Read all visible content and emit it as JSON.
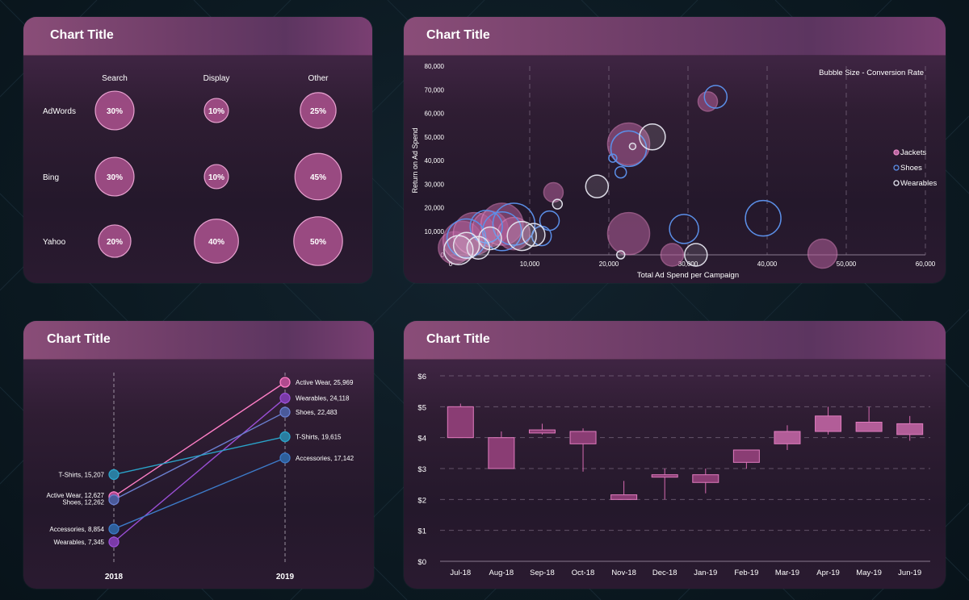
{
  "colors": {
    "panel_header": "#7a4570",
    "bubble_fill": "#a04d86",
    "bubble_stroke": "#f2a9d8",
    "jackets": "#c76aa6",
    "shoes": "#5b8fe8",
    "wearables": "#e6e6f0",
    "candle": "#b25d98",
    "active_wear": "#ff7fc7",
    "wearables_line": "#9b4fd6",
    "shoes_line": "#6a7fd0",
    "tshirts_line": "#2aa3c9",
    "accessories_line": "#3d7bc9"
  },
  "panels": {
    "matrix": {
      "title": "Chart Title"
    },
    "bubble": {
      "title": "Chart Title"
    },
    "slope": {
      "title": "Chart Title"
    },
    "candle": {
      "title": "Chart Title"
    }
  },
  "chart_data": [
    {
      "type": "bubble-matrix",
      "title": "Chart Title",
      "columns": [
        "Search",
        "Display",
        "Other"
      ],
      "rows": [
        "AdWords",
        "Bing",
        "Yahoo"
      ],
      "values": [
        [
          30,
          10,
          25
        ],
        [
          30,
          10,
          45
        ],
        [
          20,
          40,
          50
        ]
      ],
      "labels": [
        [
          "30%",
          "10%",
          "25%"
        ],
        [
          "30%",
          "10%",
          "45%"
        ],
        [
          "20%",
          "40%",
          "50%"
        ]
      ]
    },
    {
      "type": "scatter",
      "title": "Chart Title",
      "xlabel": "Total Ad Spend per Campaign",
      "ylabel": "Return on Ad Spend",
      "annotation": "Bubble Size - Conversion Rate",
      "xlim": [
        0,
        60000
      ],
      "ylim": [
        0,
        80000
      ],
      "xticks": [
        "0",
        "10,000",
        "20,000",
        "30,000",
        "40,000",
        "50,000",
        "60,000"
      ],
      "yticks": [
        "0",
        "10,000",
        "20,000",
        "30,000",
        "40,000",
        "50,000",
        "60,000",
        "70,000",
        "80,000"
      ],
      "legend_position": "right",
      "series": [
        {
          "name": "Jackets",
          "points": [
            {
              "x": 500,
              "y": 3000,
              "size": 20
            },
            {
              "x": 1500,
              "y": 6000,
              "size": 24
            },
            {
              "x": 3000,
              "y": 9000,
              "size": 26
            },
            {
              "x": 5000,
              "y": 11000,
              "size": 22
            },
            {
              "x": 6500,
              "y": 13000,
              "size": 26
            },
            {
              "x": 8000,
              "y": 9000,
              "size": 20
            },
            {
              "x": 13000,
              "y": 26500,
              "size": 12
            },
            {
              "x": 22500,
              "y": 9000,
              "size": 26
            },
            {
              "x": 22500,
              "y": 47000,
              "size": 26
            },
            {
              "x": 28000,
              "y": 0,
              "size": 14
            },
            {
              "x": 32500,
              "y": 65000,
              "size": 12
            },
            {
              "x": 47000,
              "y": 500,
              "size": 18
            }
          ]
        },
        {
          "name": "Shoes",
          "points": [
            {
              "x": 2000,
              "y": 7000,
              "size": 24
            },
            {
              "x": 4500,
              "y": 12000,
              "size": 20
            },
            {
              "x": 6500,
              "y": 10000,
              "size": 24
            },
            {
              "x": 8000,
              "y": 13000,
              "size": 26
            },
            {
              "x": 11500,
              "y": 8000,
              "size": 12
            },
            {
              "x": 12500,
              "y": 14500,
              "size": 12
            },
            {
              "x": 21500,
              "y": 35000,
              "size": 7
            },
            {
              "x": 20500,
              "y": 41000,
              "size": 5
            },
            {
              "x": 22500,
              "y": 45000,
              "size": 22
            },
            {
              "x": 29500,
              "y": 11000,
              "size": 18
            },
            {
              "x": 33500,
              "y": 67000,
              "size": 14
            },
            {
              "x": 39500,
              "y": 15500,
              "size": 22
            }
          ]
        },
        {
          "name": "Wearables",
          "points": [
            {
              "x": 1000,
              "y": 2000,
              "size": 18
            },
            {
              "x": 2000,
              "y": 4000,
              "size": 16
            },
            {
              "x": 3500,
              "y": 3000,
              "size": 14
            },
            {
              "x": 5000,
              "y": 7000,
              "size": 14
            },
            {
              "x": 9000,
              "y": 8000,
              "size": 18
            },
            {
              "x": 10500,
              "y": 8500,
              "size": 14
            },
            {
              "x": 13500,
              "y": 21500,
              "size": 6
            },
            {
              "x": 18500,
              "y": 29000,
              "size": 14
            },
            {
              "x": 23000,
              "y": 46000,
              "size": 4
            },
            {
              "x": 25500,
              "y": 50000,
              "size": 16
            },
            {
              "x": 31000,
              "y": 0,
              "size": 14
            },
            {
              "x": 21500,
              "y": 0,
              "size": 5
            }
          ]
        }
      ]
    },
    {
      "type": "slope",
      "title": "Chart Title",
      "x": [
        "2018",
        "2019"
      ],
      "series": [
        {
          "name": "Active Wear",
          "values": [
            12627,
            25969
          ],
          "label_2018": "Active Wear, 12,627",
          "label_2019": "Active Wear, 25,969"
        },
        {
          "name": "Wearables",
          "values": [
            7345,
            24118
          ],
          "label_2018": "Wearables, 7,345",
          "label_2019": "Wearables, 24,118"
        },
        {
          "name": "Shoes",
          "values": [
            12262,
            22483
          ],
          "label_2018": "Shoes, 12,262",
          "label_2019": "Shoes, 22,483"
        },
        {
          "name": "T-Shirts",
          "values": [
            15207,
            19615
          ],
          "label_2018": "T-Shirts, 15,207",
          "label_2019": "T-Shirts, 19,615"
        },
        {
          "name": "Accessories",
          "values": [
            8854,
            17142
          ],
          "label_2018": "Accessories, 8,854",
          "label_2019": "Accessories, 17,142"
        }
      ]
    },
    {
      "type": "candlestick",
      "title": "Chart Title",
      "categories": [
        "Jul-18",
        "Aug-18",
        "Sep-18",
        "Oct-18",
        "Nov-18",
        "Dec-18",
        "Jan-19",
        "Feb-19",
        "Mar-19",
        "Apr-19",
        "May-19",
        "Jun-19"
      ],
      "ylim": [
        0,
        6
      ],
      "yticks": [
        "$0",
        "$1",
        "$2",
        "$3",
        "$4",
        "$5",
        "$6"
      ],
      "candles": [
        {
          "open": 5.0,
          "high": 5.1,
          "low": 4.0,
          "close": 4.0
        },
        {
          "open": 4.0,
          "high": 4.2,
          "low": 3.0,
          "close": 3.0
        },
        {
          "open": 4.25,
          "high": 4.45,
          "low": 4.1,
          "close": 4.15
        },
        {
          "open": 4.2,
          "high": 4.3,
          "low": 2.9,
          "close": 3.8
        },
        {
          "open": 2.15,
          "high": 2.6,
          "low": 2.0,
          "close": 2.0
        },
        {
          "open": 2.8,
          "high": 3.0,
          "low": 2.0,
          "close": 2.75
        },
        {
          "open": 2.8,
          "high": 3.0,
          "low": 2.2,
          "close": 2.55
        },
        {
          "open": 3.6,
          "high": 3.6,
          "low": 3.0,
          "close": 3.2
        },
        {
          "open": 3.8,
          "high": 4.4,
          "low": 3.6,
          "close": 4.2
        },
        {
          "open": 4.2,
          "high": 5.0,
          "low": 4.1,
          "close": 4.7
        },
        {
          "open": 4.2,
          "high": 5.0,
          "low": 4.2,
          "close": 4.5
        },
        {
          "open": 4.1,
          "high": 4.7,
          "low": 3.9,
          "close": 4.45
        }
      ]
    }
  ]
}
